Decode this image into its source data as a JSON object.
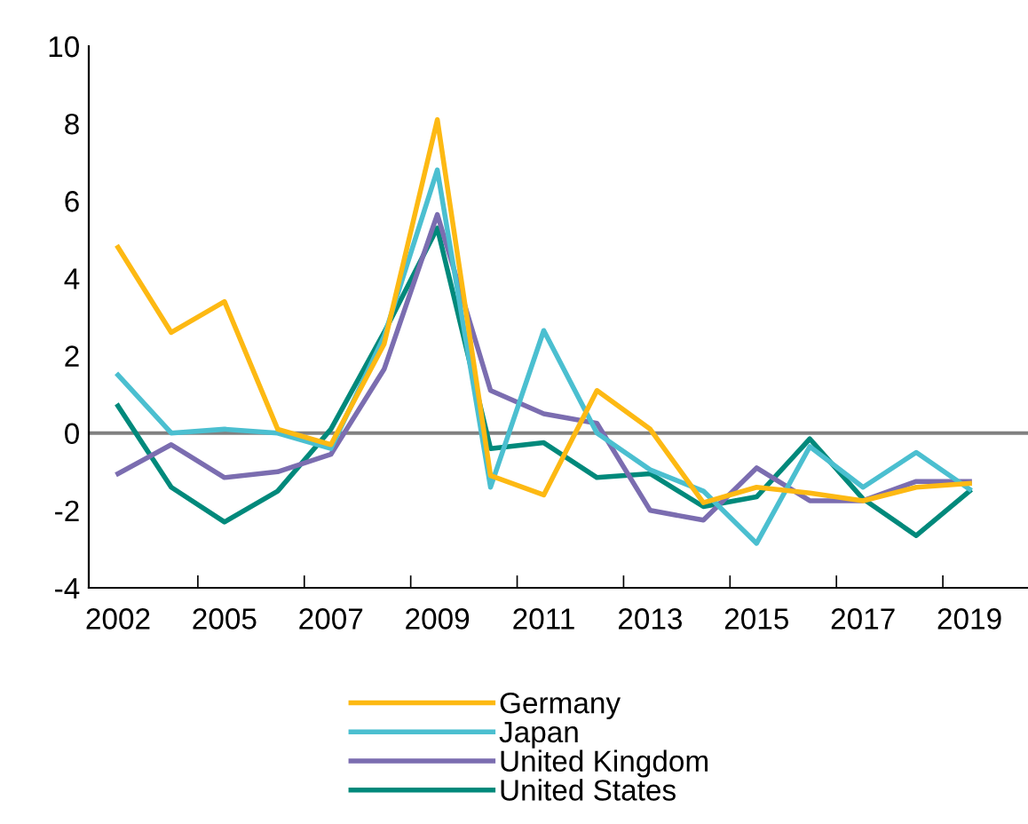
{
  "chart_data": {
    "type": "line",
    "categories": [
      "2002",
      null,
      "2005",
      null,
      "2007",
      null,
      "2009",
      null,
      "2011",
      null,
      "2013",
      null,
      "2015",
      null,
      "2017",
      null,
      "2019"
    ],
    "series": [
      {
        "name": "Germany",
        "color": "#fdb913",
        "values": [
          4.8,
          2.6,
          3.4,
          0.1,
          -0.3,
          2.3,
          8.1,
          -1.1,
          -1.6,
          1.1,
          0.1,
          -1.8,
          -1.4,
          -1.55,
          -1.75,
          -1.4,
          -1.3
        ]
      },
      {
        "name": "Japan",
        "color": "#4bbfd0",
        "values": [
          1.5,
          0,
          0.1,
          0,
          -0.4,
          2.5,
          6.8,
          -1.4,
          2.65,
          0,
          -0.95,
          -1.5,
          -2.85,
          -0.35,
          -1.4,
          -0.5,
          -1.45
        ]
      },
      {
        "name": "United Kingdom",
        "color": "#7b6db0",
        "values": [
          -1.05,
          -0.3,
          -1.15,
          -1.0,
          -0.55,
          1.65,
          5.65,
          1.1,
          0.5,
          0.25,
          -2.0,
          -2.25,
          -0.9,
          -1.75,
          -1.75,
          -1.25,
          -1.25
        ]
      },
      {
        "name": "United States",
        "color": "#00897b",
        "values": [
          0.7,
          -1.4,
          -2.3,
          -1.5,
          0.1,
          2.6,
          5.3,
          -0.4,
          -0.25,
          -1.15,
          -1.05,
          -1.9,
          -1.65,
          -0.15,
          -1.7,
          -2.65,
          -1.5
        ]
      }
    ],
    "ylim": [
      -4,
      10
    ],
    "yticks": [
      -4,
      -2,
      0,
      2,
      4,
      6,
      8,
      10
    ],
    "ref_lines": [
      {
        "axis": "y",
        "value": 0,
        "color": "#808080"
      }
    ],
    "grid": false,
    "legend": "bottom",
    "marker": "none",
    "line_style": "solid"
  }
}
